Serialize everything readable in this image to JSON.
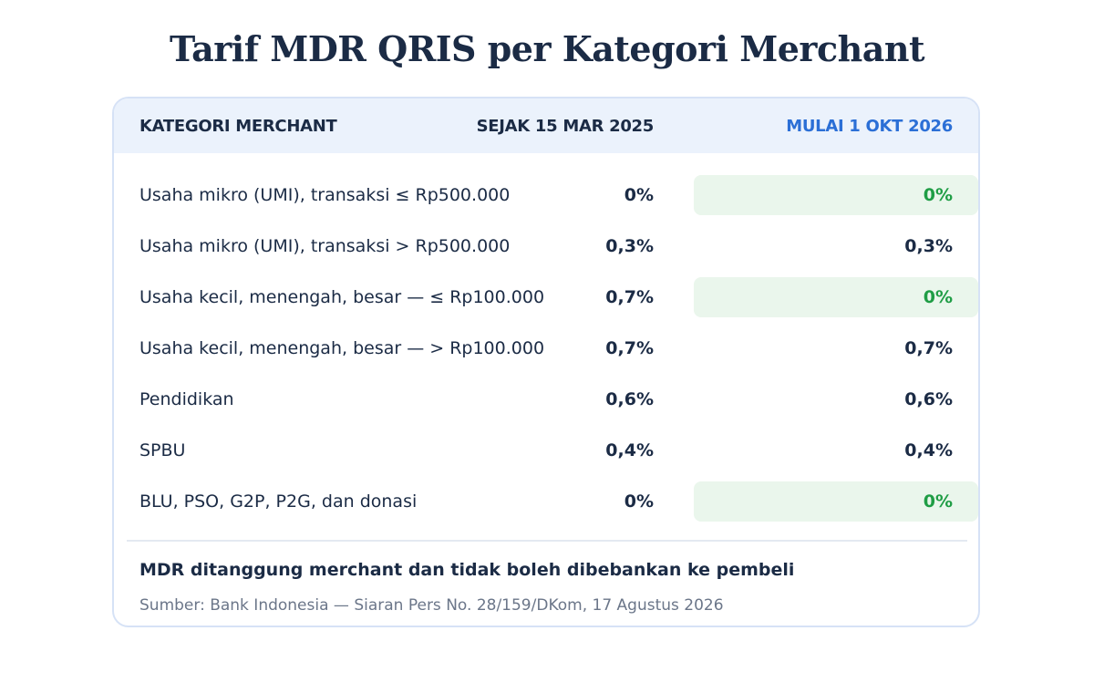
{
  "title": "Tarif MDR QRIS per Kategori Merchant",
  "table": {
    "headers": {
      "category": "KATEGORI MERCHANT",
      "current": "SEJAK 15 MAR 2025",
      "upcoming": "MULAI 1 OKT 2026"
    },
    "rows": [
      {
        "category": "Usaha mikro (UMI), transaksi ≤ Rp500.000",
        "current": "0%",
        "upcoming": "0%",
        "highlight": true
      },
      {
        "category": "Usaha mikro (UMI), transaksi > Rp500.000",
        "current": "0,3%",
        "upcoming": "0,3%",
        "highlight": false
      },
      {
        "category": "Usaha kecil, menengah, besar — ≤ Rp100.000",
        "current": "0,7%",
        "upcoming": "0%",
        "highlight": true
      },
      {
        "category": "Usaha kecil, menengah, besar — > Rp100.000",
        "current": "0,7%",
        "upcoming": "0,7%",
        "highlight": false
      },
      {
        "category": "Pendidikan",
        "current": "0,6%",
        "upcoming": "0,6%",
        "highlight": false
      },
      {
        "category": "SPBU",
        "current": "0,4%",
        "upcoming": "0,4%",
        "highlight": false
      },
      {
        "category": "BLU, PSO, G2P, P2G, dan donasi",
        "current": "0%",
        "upcoming": "0%",
        "highlight": true
      }
    ]
  },
  "note": "MDR ditanggung merchant dan tidak boleh dibebankan ke pembeli",
  "source": "Sumber: Bank Indonesia — Siaran Pers No. 28/159/DKom, 17 Agustus 2026",
  "colors": {
    "accent_blue": "#2b6fd6",
    "highlight_green": "#1f9d45",
    "highlight_bg": "#eaf6ec",
    "header_bg": "#ebf2fc"
  }
}
